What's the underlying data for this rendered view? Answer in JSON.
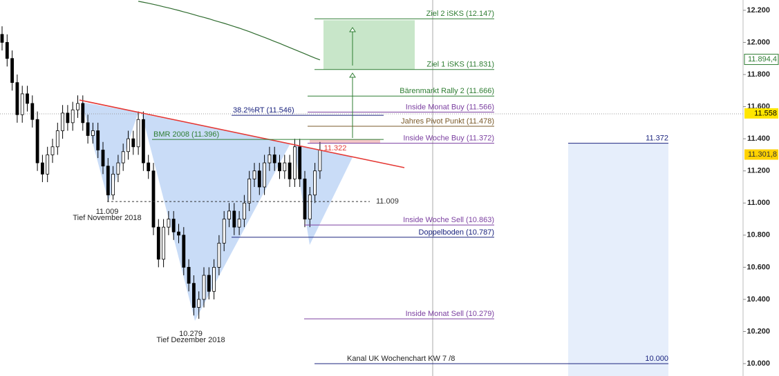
{
  "chart_data": {
    "type": "candlestick",
    "ylim": [
      9923,
      12264
    ],
    "yticks": [
      {
        "value": 10000,
        "label": "10.000"
      },
      {
        "value": 10200,
        "label": "10.200"
      },
      {
        "value": 10400,
        "label": "10.400"
      },
      {
        "value": 10600,
        "label": "10.600"
      },
      {
        "value": 10800,
        "label": "10.800"
      },
      {
        "value": 11000,
        "label": "11.000"
      },
      {
        "value": 11200,
        "label": "11.200"
      },
      {
        "value": 11400,
        "label": "11.400"
      },
      {
        "value": 11600,
        "label": "11.600"
      },
      {
        "value": 11800,
        "label": "11.800"
      },
      {
        "value": 12000,
        "label": "12.000"
      },
      {
        "value": 12200,
        "label": "12.200"
      }
    ],
    "open": [
      12050,
      12000,
      11900,
      11750,
      11550,
      11680,
      11620,
      11520,
      11250,
      11180,
      11300,
      11350,
      11450,
      11560,
      11500,
      11580,
      11620,
      11500,
      11420,
      11450,
      11330,
      11230,
      11050,
      11180,
      11250,
      11320,
      11400,
      11350,
      11520,
      11250,
      11200,
      10850,
      10650,
      10850,
      10900,
      10820,
      10800,
      10600,
      10500,
      10350,
      10400,
      10550,
      10450,
      10600,
      10750,
      10900,
      10950,
      10850,
      10900,
      11000,
      11150,
      11200,
      11100,
      11250,
      11300,
      11250,
      11200,
      11250,
      11150,
      11350,
      11150,
      10900,
      11050,
      11200
    ],
    "high": [
      12100,
      12050,
      11950,
      11800,
      11730,
      11730,
      11670,
      11570,
      11300,
      11350,
      11400,
      11500,
      11610,
      11610,
      11630,
      11670,
      11670,
      11550,
      11500,
      11500,
      11380,
      11280,
      11230,
      11300,
      11370,
      11450,
      11450,
      11570,
      11570,
      11300,
      11250,
      10900,
      10900,
      10950,
      10950,
      10870,
      10850,
      10650,
      10550,
      10450,
      10600,
      10600,
      10650,
      10800,
      10950,
      11000,
      11000,
      10950,
      11050,
      11200,
      11250,
      11250,
      11300,
      11350,
      11350,
      11300,
      11300,
      11300,
      11400,
      11400,
      11200,
      11100,
      11250,
      11380
    ],
    "low": [
      11950,
      11850,
      11700,
      11500,
      11500,
      11570,
      11470,
      11200,
      11130,
      11130,
      11250,
      11300,
      11400,
      11450,
      11450,
      11530,
      11450,
      11370,
      11370,
      11280,
      11180,
      11009,
      11020,
      11130,
      11200,
      11270,
      11300,
      11300,
      11200,
      11150,
      10800,
      10600,
      10600,
      10800,
      10770,
      10750,
      10550,
      10450,
      10300,
      10279,
      10350,
      10400,
      10400,
      10550,
      10700,
      10850,
      10800,
      10800,
      10850,
      10950,
      11100,
      11050,
      11050,
      11200,
      11200,
      11150,
      11150,
      11100,
      11100,
      11100,
      10850,
      10850,
      11000,
      11150
    ],
    "close": [
      12000,
      11900,
      11750,
      11550,
      11680,
      11620,
      11520,
      11250,
      11180,
      11300,
      11350,
      11450,
      11560,
      11500,
      11580,
      11620,
      11500,
      11420,
      11450,
      11330,
      11230,
      11050,
      11180,
      11250,
      11320,
      11400,
      11350,
      11520,
      11250,
      11200,
      10850,
      10650,
      10850,
      10900,
      10820,
      10800,
      10600,
      10500,
      10350,
      10400,
      10550,
      10450,
      10600,
      10750,
      10900,
      10950,
      10850,
      10900,
      11000,
      11150,
      11200,
      11100,
      11250,
      11300,
      11250,
      11200,
      11250,
      11150,
      11350,
      11150,
      10900,
      11050,
      11200,
      11330
    ],
    "colors": {
      "up": "#ffffff",
      "down": "#000000"
    },
    "moving_average": {
      "color": "#2e6b2e",
      "values": [
        null,
        null,
        null,
        null,
        null,
        null,
        null,
        null,
        null,
        null,
        null,
        null,
        null,
        null,
        null,
        null,
        null,
        null,
        null,
        null,
        null,
        null,
        null,
        null,
        null,
        null,
        null,
        12256,
        12250,
        12244,
        12237,
        12230,
        12222,
        12215,
        12207,
        12199,
        12190,
        12182,
        12173,
        12164,
        12156,
        12147,
        12137,
        12128,
        12119,
        12109,
        12099,
        12089,
        12078,
        12067,
        12055,
        12043,
        12031,
        12019,
        12006,
        11994,
        11981,
        11968,
        11955,
        11942,
        11929,
        11916,
        11903,
        11891
      ]
    },
    "levels": [
      {
        "label": "Ziel 2 iSKS (12.147)",
        "value": 12147,
        "color": "#2e7d32"
      },
      {
        "label": "Ziel 1 iSKS (11.831)",
        "value": 11831,
        "color": "#2e7d32"
      },
      {
        "label": "Bärenmarkt Rally 2 (11.666)",
        "value": 11666,
        "color": "#2e7d32"
      },
      {
        "label": "Inside Monat Buy (11.566)",
        "value": 11566,
        "color": "#7b3fa0"
      },
      {
        "label": "38.2%RT (11.546)",
        "value": 11546,
        "color": "#1a237e"
      },
      {
        "label": "Jahres Pivot Punkt  (11.478)",
        "value": 11478,
        "color": "#7a5a2a"
      },
      {
        "label": "BMR 2008  (11.396)",
        "value": 11396,
        "color": "#2e7d32"
      },
      {
        "label": "Inside Woche Buy (11.372)",
        "value": 11372,
        "color": "#7b3fa0"
      },
      {
        "label": "11.009",
        "value": 11009,
        "color": "#333333"
      },
      {
        "label": "Inside Woche Sell (10.863)",
        "value": 10863,
        "color": "#7b3fa0"
      },
      {
        "label": "Doppelboden (10.787)",
        "value": 10787,
        "color": "#1a237e"
      },
      {
        "label": "Inside Monat Sell (10.279)",
        "value": 10279,
        "color": "#7b3fa0"
      },
      {
        "label": "11.372",
        "value": 11372,
        "color": "#1a237e"
      },
      {
        "label": "10.000",
        "value": 10000,
        "color": "#1a237e",
        "note": "Kanal UK Wochenchart KW 7 /8"
      }
    ],
    "notes": [
      {
        "label": "11.009",
        "value": 11009,
        "caption": "Tief November 2018"
      },
      {
        "label": "10.279",
        "value": 10279,
        "caption": "Tief Dezember 2018"
      },
      {
        "label": "11.322",
        "value": 11322
      }
    ],
    "price_badges": [
      {
        "label": "11.894,4",
        "value": 11894.4,
        "color": "#ffffff",
        "text_color": "#2e7d32"
      },
      {
        "label": "11.558",
        "value": 11558,
        "color": "#ffe600",
        "text_color": "#000000"
      },
      {
        "label": "11.301,8",
        "value": 11301.8,
        "color": "#ffd200",
        "text_color": "#333333"
      }
    ]
  }
}
